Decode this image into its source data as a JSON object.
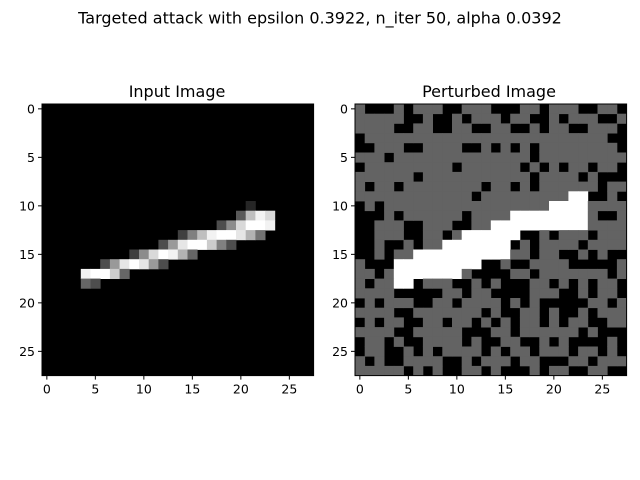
{
  "figure": {
    "suptitle": "Targeted attack with epsilon 0.3922, n_iter 50, alpha 0.0392"
  },
  "chart_data": [
    {
      "type": "heatmap",
      "title": "Input Image",
      "colormap": "gray",
      "rows": 28,
      "cols": 28,
      "xlim": [
        0,
        27
      ],
      "ylim": [
        27,
        0
      ],
      "xticks": [
        0,
        5,
        10,
        15,
        20,
        25
      ],
      "yticks": [
        0,
        5,
        10,
        15,
        20,
        25
      ],
      "xticklabels": [
        "0",
        "5",
        "10",
        "15",
        "20",
        "25"
      ],
      "yticklabels": [
        "0",
        "5",
        "10",
        "15",
        "20",
        "25"
      ],
      "background": 0.0,
      "pixels": [
        [
          10,
          21,
          0.15
        ],
        [
          11,
          20,
          0.35
        ],
        [
          11,
          21,
          0.75
        ],
        [
          11,
          22,
          0.95
        ],
        [
          11,
          23,
          0.85
        ],
        [
          12,
          18,
          0.3
        ],
        [
          12,
          19,
          0.55
        ],
        [
          12,
          20,
          0.85
        ],
        [
          12,
          21,
          1.0
        ],
        [
          12,
          22,
          1.0
        ],
        [
          12,
          23,
          0.95
        ],
        [
          13,
          14,
          0.25
        ],
        [
          13,
          15,
          0.5
        ],
        [
          13,
          16,
          0.75
        ],
        [
          13,
          17,
          0.95
        ],
        [
          13,
          18,
          1.0
        ],
        [
          13,
          19,
          1.0
        ],
        [
          13,
          20,
          0.9
        ],
        [
          13,
          21,
          0.7
        ],
        [
          13,
          22,
          0.45
        ],
        [
          14,
          12,
          0.3
        ],
        [
          14,
          13,
          0.6
        ],
        [
          14,
          14,
          0.9
        ],
        [
          14,
          15,
          1.0
        ],
        [
          14,
          16,
          1.0
        ],
        [
          14,
          17,
          0.8
        ],
        [
          14,
          18,
          0.5
        ],
        [
          14,
          19,
          0.3
        ],
        [
          15,
          9,
          0.25
        ],
        [
          15,
          10,
          0.55
        ],
        [
          15,
          11,
          0.85
        ],
        [
          15,
          12,
          1.0
        ],
        [
          15,
          13,
          0.95
        ],
        [
          15,
          14,
          0.7
        ],
        [
          15,
          15,
          0.4
        ],
        [
          16,
          6,
          0.3
        ],
        [
          16,
          7,
          0.6
        ],
        [
          16,
          8,
          0.9
        ],
        [
          16,
          9,
          1.0
        ],
        [
          16,
          10,
          0.9
        ],
        [
          16,
          11,
          0.6
        ],
        [
          16,
          12,
          0.3
        ],
        [
          17,
          4,
          0.95
        ],
        [
          17,
          5,
          1.0
        ],
        [
          17,
          6,
          1.0
        ],
        [
          17,
          7,
          0.8
        ],
        [
          17,
          8,
          0.4
        ],
        [
          18,
          4,
          0.4
        ],
        [
          18,
          5,
          0.3
        ]
      ]
    },
    {
      "type": "heatmap",
      "title": "Perturbed Image",
      "colormap": "gray",
      "rows": 28,
      "cols": 28,
      "xlim": [
        0,
        27
      ],
      "ylim": [
        27,
        0
      ],
      "xticks": [
        0,
        5,
        10,
        15,
        20,
        25
      ],
      "yticks": [
        0,
        5,
        10,
        15,
        20,
        25
      ],
      "xticklabels": [
        "0",
        "5",
        "10",
        "15",
        "20",
        "25"
      ],
      "yticklabels": [
        "0",
        "5",
        "10",
        "15",
        "20",
        "25"
      ],
      "perturbation_levels": [
        0.0,
        0.39
      ],
      "stroke": [
        [
          9,
          22,
          1.0
        ],
        [
          9,
          23,
          1.0
        ],
        [
          10,
          20,
          1.0
        ],
        [
          10,
          21,
          1.0
        ],
        [
          10,
          22,
          1.0
        ],
        [
          10,
          23,
          1.0
        ],
        [
          11,
          16,
          1.0
        ],
        [
          11,
          17,
          1.0
        ],
        [
          11,
          18,
          1.0
        ],
        [
          11,
          19,
          1.0
        ],
        [
          11,
          20,
          1.0
        ],
        [
          11,
          21,
          1.0
        ],
        [
          11,
          22,
          1.0
        ],
        [
          11,
          23,
          1.0
        ],
        [
          12,
          14,
          1.0
        ],
        [
          12,
          15,
          1.0
        ],
        [
          12,
          16,
          1.0
        ],
        [
          12,
          17,
          1.0
        ],
        [
          12,
          18,
          1.0
        ],
        [
          12,
          19,
          1.0
        ],
        [
          12,
          20,
          1.0
        ],
        [
          12,
          21,
          1.0
        ],
        [
          12,
          22,
          1.0
        ],
        [
          12,
          23,
          1.0
        ],
        [
          13,
          11,
          1.0
        ],
        [
          13,
          12,
          1.0
        ],
        [
          13,
          13,
          1.0
        ],
        [
          13,
          14,
          1.0
        ],
        [
          13,
          15,
          1.0
        ],
        [
          13,
          16,
          1.0
        ],
        [
          14,
          9,
          1.0
        ],
        [
          14,
          10,
          1.0
        ],
        [
          14,
          11,
          1.0
        ],
        [
          14,
          12,
          1.0
        ],
        [
          14,
          13,
          1.0
        ],
        [
          14,
          14,
          1.0
        ],
        [
          14,
          15,
          1.0
        ],
        [
          15,
          6,
          1.0
        ],
        [
          15,
          7,
          1.0
        ],
        [
          15,
          8,
          1.0
        ],
        [
          15,
          9,
          1.0
        ],
        [
          15,
          10,
          1.0
        ],
        [
          15,
          11,
          1.0
        ],
        [
          15,
          12,
          1.0
        ],
        [
          15,
          13,
          1.0
        ],
        [
          15,
          14,
          1.0
        ],
        [
          15,
          15,
          1.0
        ],
        [
          16,
          4,
          1.0
        ],
        [
          16,
          5,
          1.0
        ],
        [
          16,
          6,
          1.0
        ],
        [
          16,
          7,
          1.0
        ],
        [
          16,
          8,
          1.0
        ],
        [
          16,
          9,
          1.0
        ],
        [
          16,
          10,
          1.0
        ],
        [
          16,
          11,
          1.0
        ],
        [
          16,
          12,
          1.0
        ],
        [
          17,
          4,
          1.0
        ],
        [
          17,
          5,
          1.0
        ],
        [
          17,
          6,
          1.0
        ],
        [
          17,
          7,
          1.0
        ],
        [
          17,
          8,
          1.0
        ],
        [
          17,
          9,
          1.0
        ],
        [
          17,
          10,
          1.0
        ],
        [
          18,
          4,
          1.0
        ],
        [
          18,
          5,
          1.0
        ]
      ]
    }
  ]
}
